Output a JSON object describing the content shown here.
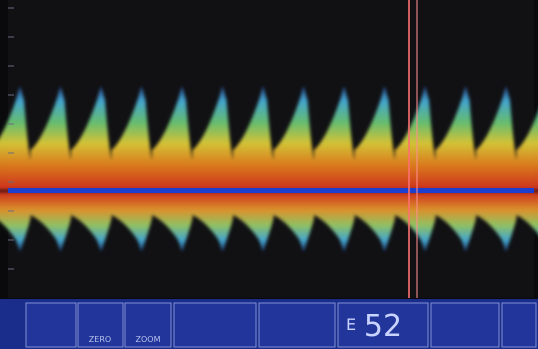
{
  "toolbar": {
    "buttons": [
      {
        "label": "ZERO"
      },
      {
        "label": "ZOOM"
      }
    ],
    "readout": {
      "marker": "E",
      "value": "52"
    }
  }
}
